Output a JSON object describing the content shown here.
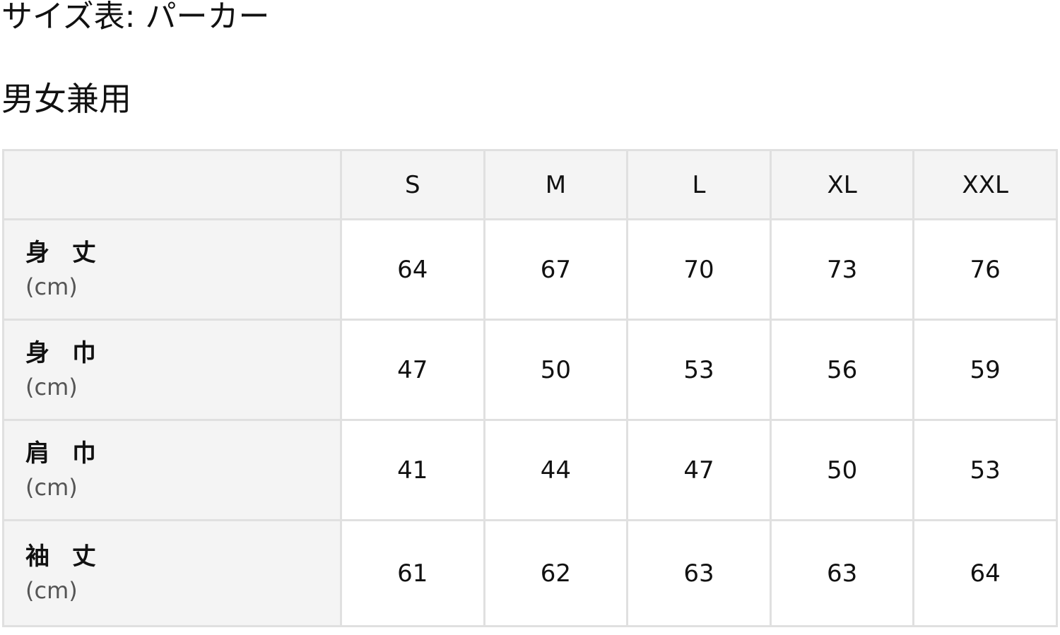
{
  "title": "サイズ表: パーカー",
  "subtitle": "男女兼用",
  "table": {
    "headers": [
      "",
      "S",
      "M",
      "L",
      "XL",
      "XXL"
    ],
    "rows": [
      {
        "name": "身 丈",
        "unit": "(cm)",
        "values": [
          "64",
          "67",
          "70",
          "73",
          "76"
        ]
      },
      {
        "name": "身 巾",
        "unit": "(cm)",
        "values": [
          "47",
          "50",
          "53",
          "56",
          "59"
        ]
      },
      {
        "name": "肩 巾",
        "unit": "(cm)",
        "values": [
          "41",
          "44",
          "47",
          "50",
          "53"
        ]
      },
      {
        "name": "袖 丈",
        "unit": "(cm)",
        "values": [
          "61",
          "62",
          "63",
          "63",
          "64"
        ]
      }
    ]
  }
}
